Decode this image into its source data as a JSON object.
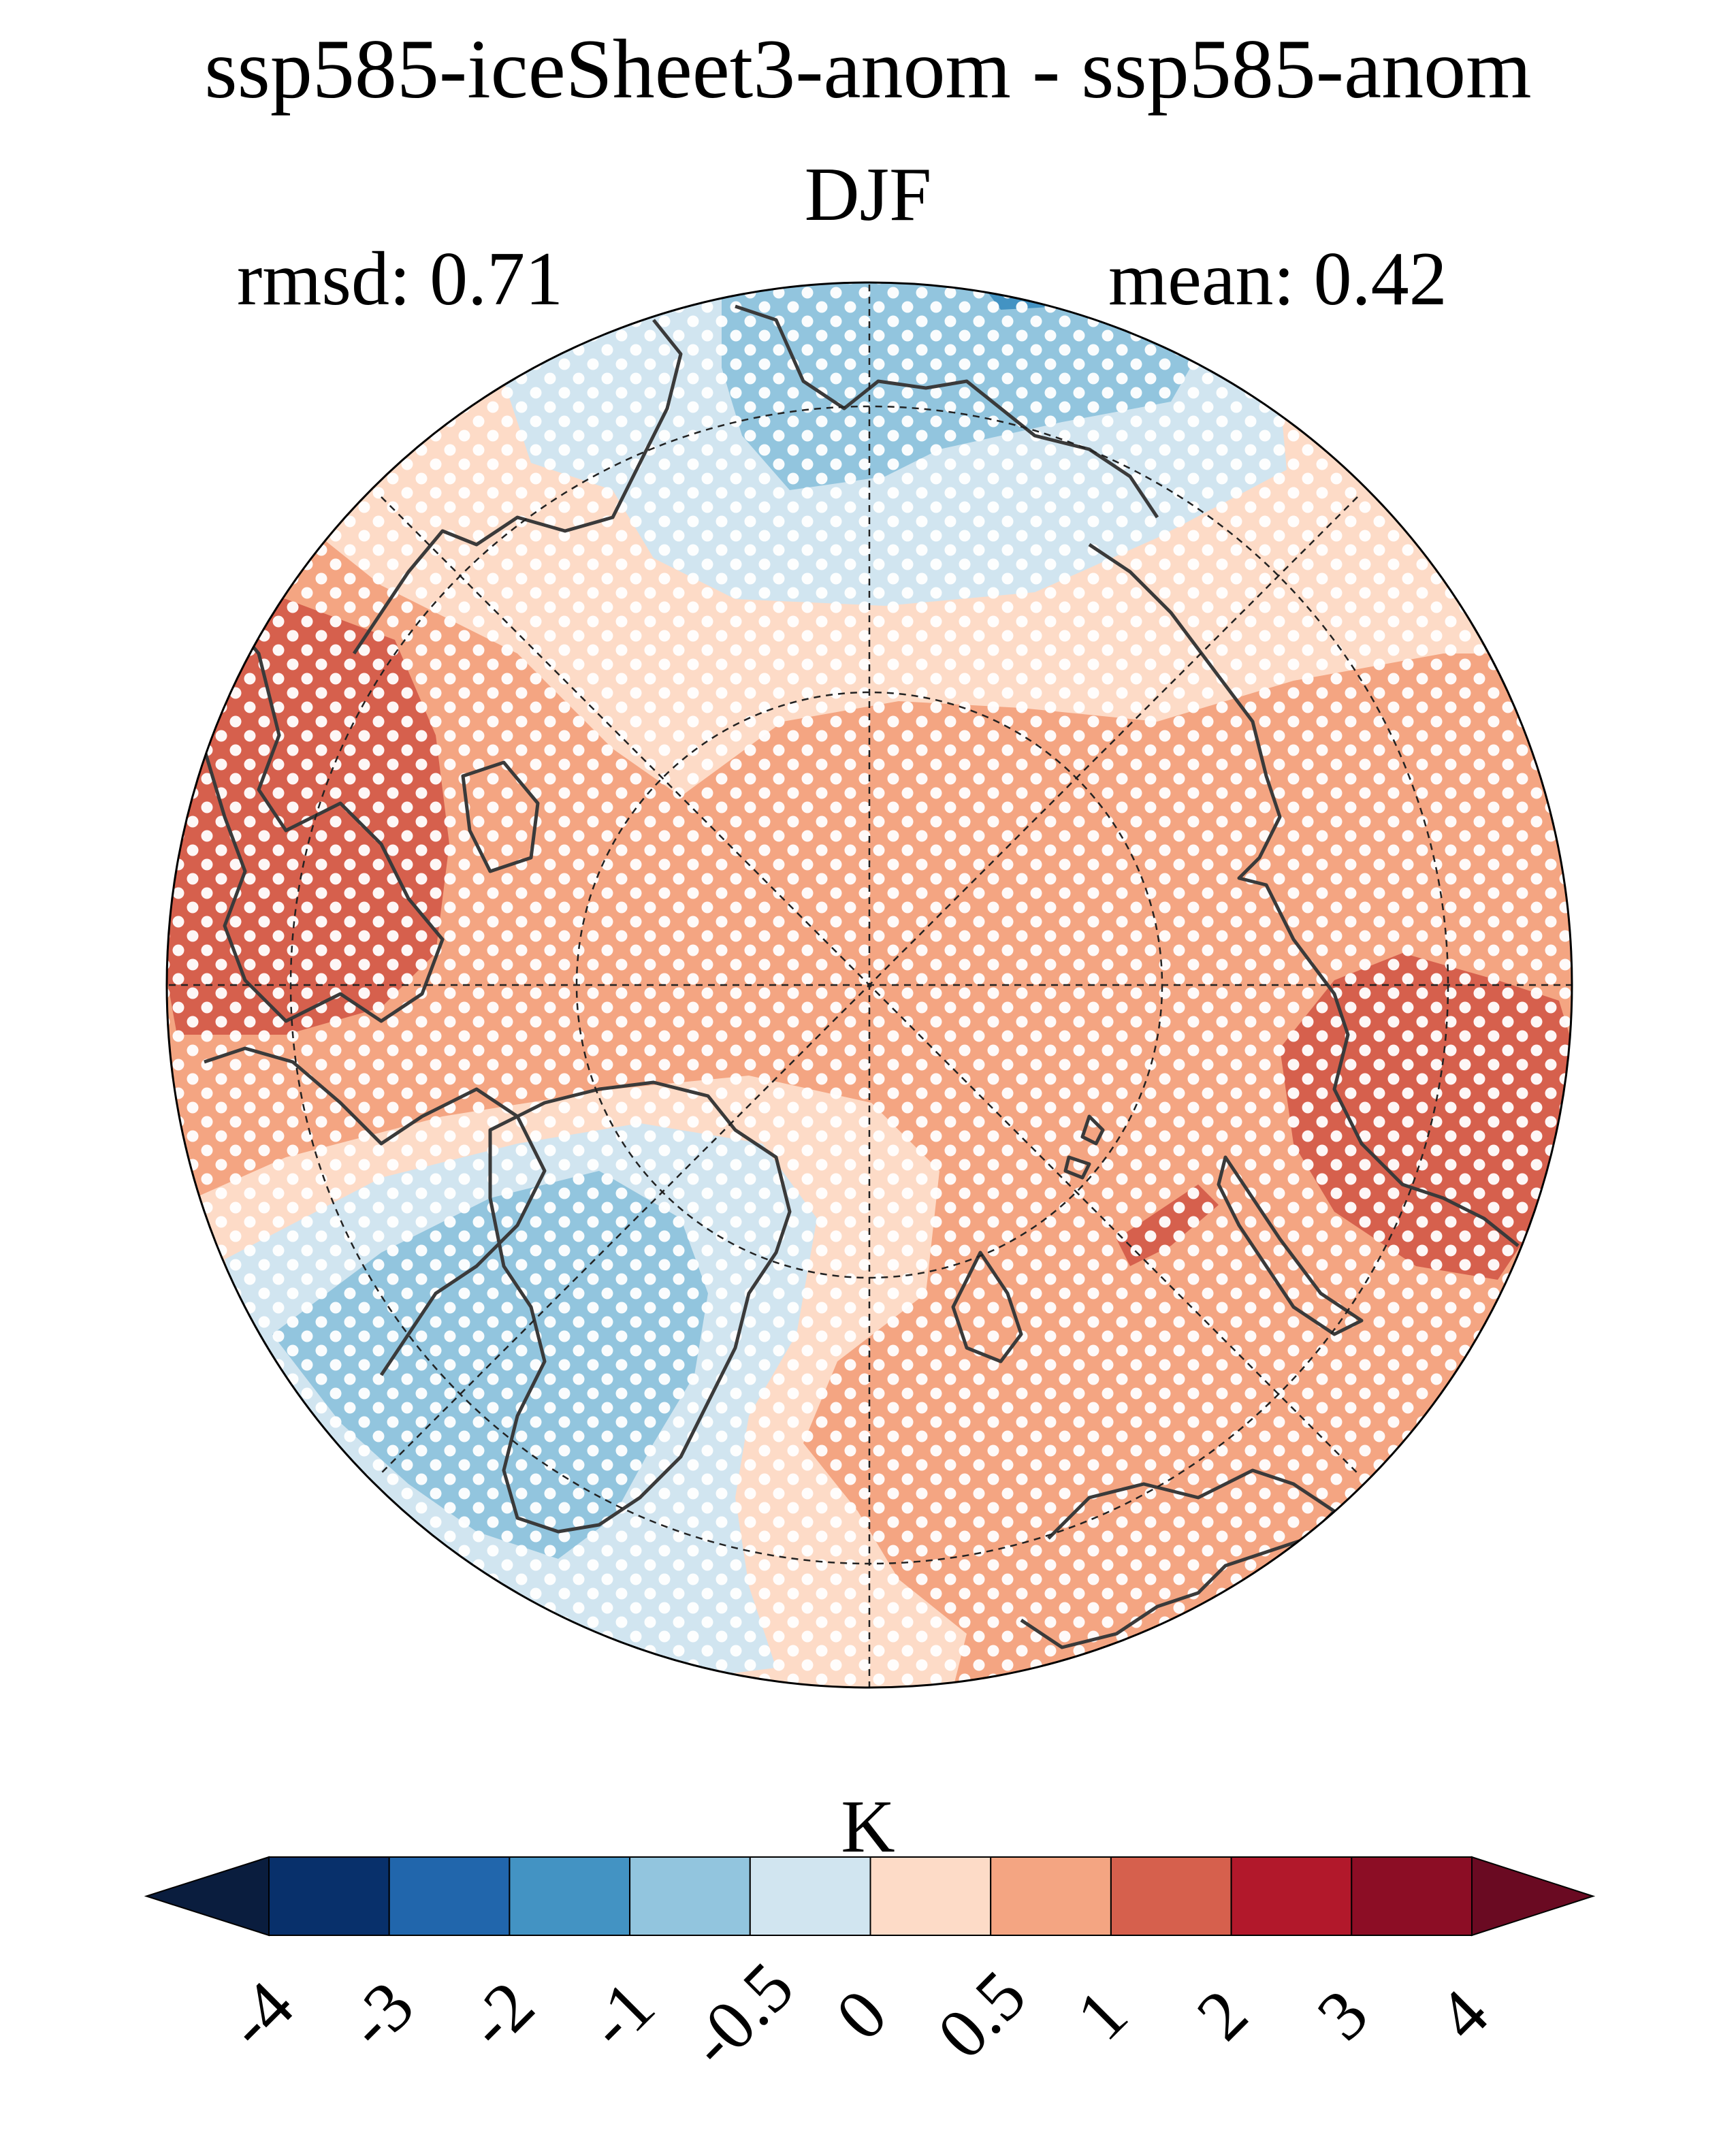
{
  "figure": {
    "title": "ssp585-iceSheet3-anom - ssp585-anom",
    "season": "DJF",
    "rmsd_label": "rmsd: 0.71",
    "mean_label": "mean: 0.42"
  },
  "colorbar": {
    "units": "K",
    "ticks": [
      "-4",
      "-3",
      "-2",
      "-1",
      "-0.5",
      "0",
      "0.5",
      "1",
      "2",
      "3",
      "4"
    ],
    "extend_low_color": "#0a1d3e",
    "extend_high_color": "#6a0a22",
    "bins": [
      {
        "from": "-4",
        "to": "-3",
        "color": "#08306b"
      },
      {
        "from": "-3",
        "to": "-2",
        "color": "#2166ac"
      },
      {
        "from": "-2",
        "to": "-1",
        "color": "#4393c3"
      },
      {
        "from": "-1",
        "to": "-0.5",
        "color": "#92c5de"
      },
      {
        "from": "-0.5",
        "to": "0",
        "color": "#d1e5f0"
      },
      {
        "from": "0",
        "to": "0.5",
        "color": "#fddbc7"
      },
      {
        "from": "0.5",
        "to": "1",
        "color": "#f4a582"
      },
      {
        "from": "1",
        "to": "2",
        "color": "#d6604d"
      },
      {
        "from": "2",
        "to": "3",
        "color": "#b2182b"
      },
      {
        "from": "3",
        "to": "4",
        "color": "#8c0d25"
      }
    ]
  },
  "map": {
    "projection": "north polar stereographic",
    "stippling": "white dots",
    "coastline_color": "#3a3a3a",
    "gridline_style": "dashed"
  }
}
